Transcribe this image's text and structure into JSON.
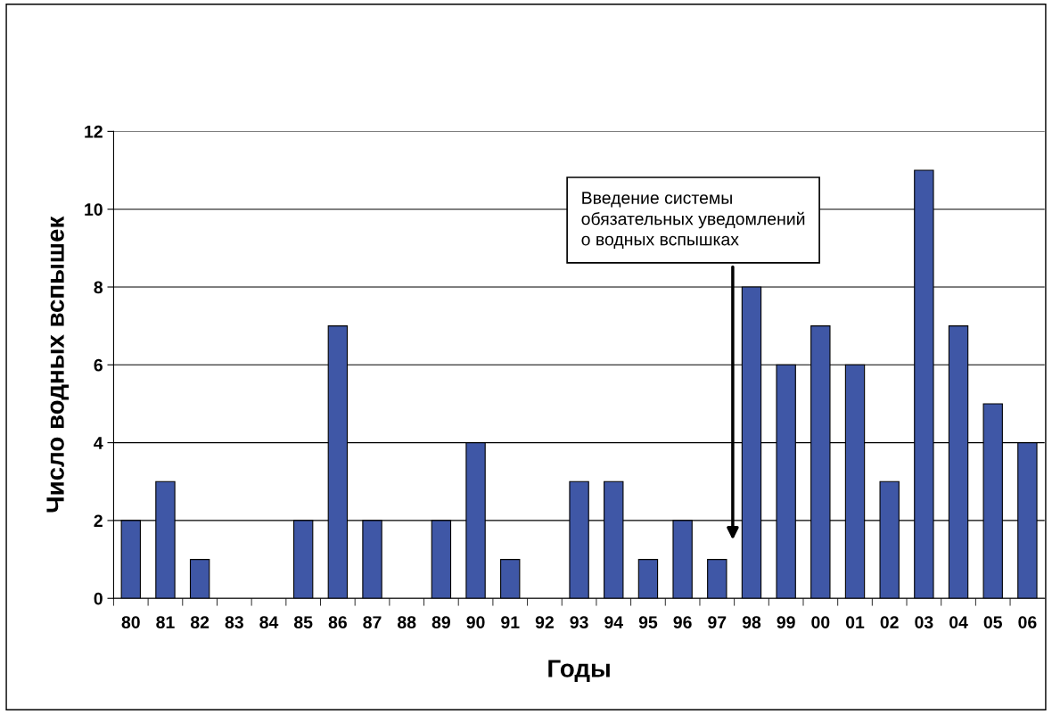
{
  "chart_data": {
    "type": "bar",
    "xlabel": "Годы",
    "ylabel": "Число водных вспышек",
    "categories": [
      "80",
      "81",
      "82",
      "83",
      "84",
      "85",
      "86",
      "87",
      "88",
      "89",
      "90",
      "91",
      "92",
      "93",
      "94",
      "95",
      "96",
      "97",
      "98",
      "99",
      "00",
      "01",
      "02",
      "03",
      "04",
      "05",
      "06"
    ],
    "values": [
      2,
      3,
      1,
      0,
      0,
      2,
      7,
      2,
      0,
      2,
      4,
      1,
      0,
      3,
      3,
      1,
      2,
      1,
      8,
      6,
      7,
      6,
      3,
      11,
      7,
      5,
      4
    ],
    "color": "#3f57a6",
    "ylim": [
      0,
      12
    ],
    "yticks": [
      0,
      2,
      4,
      6,
      8,
      10,
      12
    ],
    "grid": "y",
    "legend": false,
    "annotations": [
      "Введение системы\nобязательных уведомлений\nо водных вспышках"
    ]
  }
}
